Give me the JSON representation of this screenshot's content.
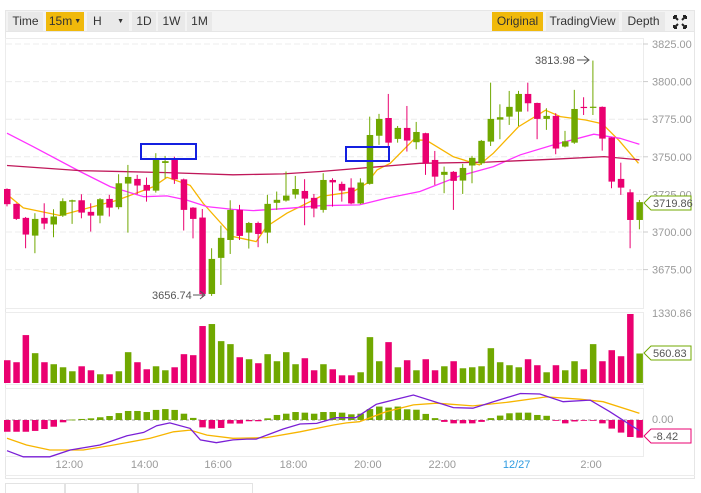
{
  "toolbar": {
    "left": [
      {
        "label": "Time",
        "active": false
      },
      {
        "label": "15m",
        "active": true,
        "dropdown": true
      },
      {
        "label": "H",
        "active": false,
        "dropdown": true
      },
      {
        "label": "1D",
        "active": false
      },
      {
        "label": "1W",
        "active": false
      },
      {
        "label": "1M",
        "active": false
      }
    ],
    "right": [
      {
        "label": "Original",
        "active": true
      },
      {
        "label": "TradingView",
        "active": false
      },
      {
        "label": "Depth",
        "active": false
      }
    ],
    "fullscreen_icon": "expand-arrows-icon"
  },
  "colors": {
    "up": "#70a800",
    "down": "#ea0070",
    "ma7": "#f7b500",
    "ma25": "#ff33ff",
    "ma99": "#c0185a",
    "dif": "#7a1fd6",
    "dea": "#f7b500",
    "accent": "#f0b90b",
    "date_label": "#2e9be0",
    "annotation_box": "#1420e0"
  },
  "chart_data": {
    "type": "candlestick",
    "interval": "15m",
    "price_axis": {
      "ticks": [
        "3825.00",
        "3800.00",
        "3775.00",
        "3750.00",
        "3725.00",
        "3700.00",
        "3675.00"
      ],
      "range": [
        3640,
        3825
      ]
    },
    "time_axis": [
      {
        "label": "12:00",
        "index": 6.7
      },
      {
        "label": "14:00",
        "index": 14.8
      },
      {
        "label": "16:00",
        "index": 22.7
      },
      {
        "label": "18:00",
        "index": 30.8
      },
      {
        "label": "20:00",
        "index": 38.8
      },
      {
        "label": "22:00",
        "index": 46.8
      },
      {
        "label": "12/27",
        "index": 54.8,
        "is_date": true
      },
      {
        "label": "2:00",
        "index": 62.8
      }
    ],
    "current_price": "3719.86",
    "high_marker": {
      "label": "3813.98",
      "index": 63,
      "value": 3813.98
    },
    "low_marker": {
      "label": "3656.74",
      "index": 21,
      "value": 3656.74
    },
    "ohlc": [
      [
        3728.6,
        3729,
        3717,
        3718.5
      ],
      [
        3718.7,
        3719,
        3708,
        3708.7
      ],
      [
        3709.4,
        3710,
        3689.2,
        3698.3
      ],
      [
        3697.6,
        3712.5,
        3685.9,
        3708.7
      ],
      [
        3709.4,
        3719.1,
        3701.8,
        3705.6
      ],
      [
        3705,
        3715.1,
        3696.5,
        3710.3
      ],
      [
        3710.9,
        3722.4,
        3710,
        3720.5
      ],
      [
        3720.2,
        3721.5,
        3705.4,
        3721.1
      ],
      [
        3721.1,
        3725.1,
        3709.1,
        3712.9
      ],
      [
        3713.4,
        3719.1,
        3700.3,
        3710.9
      ],
      [
        3710.9,
        3722.5,
        3705.8,
        3721.8
      ],
      [
        3722,
        3724.7,
        3710.3,
        3716.2
      ],
      [
        3716.5,
        3738.4,
        3715.1,
        3732.4
      ],
      [
        3732.2,
        3744.6,
        3699.6,
        3736.6
      ],
      [
        3735.3,
        3738,
        3725.1,
        3730.9
      ],
      [
        3731.3,
        3736.2,
        3720.2,
        3727.5
      ],
      [
        3727.5,
        3752.4,
        3726.2,
        3747.9
      ],
      [
        3745.9,
        3750.6,
        3735.7,
        3747.1
      ],
      [
        3749,
        3750.1,
        3732,
        3735
      ],
      [
        3735,
        3735.5,
        3701,
        3714.7
      ],
      [
        3716.2,
        3716.5,
        3695.8,
        3708.7
      ],
      [
        3709.6,
        3715.3,
        3656.74,
        3658.8
      ],
      [
        3658.8,
        3689.2,
        3657.5,
        3682.1
      ],
      [
        3682.8,
        3704.3,
        3664.8,
        3696.1
      ],
      [
        3694.7,
        3721.1,
        3685.4,
        3714.7
      ],
      [
        3714.7,
        3718,
        3694.7,
        3697.4
      ],
      [
        3699.6,
        3706.7,
        3689,
        3706
      ],
      [
        3706,
        3706.9,
        3689.9,
        3698.7
      ],
      [
        3699.6,
        3724.7,
        3692.5,
        3718.7
      ],
      [
        3719.4,
        3726.9,
        3714.7,
        3721.4
      ],
      [
        3720.9,
        3740.2,
        3720.2,
        3724.2
      ],
      [
        3724.9,
        3737.3,
        3722.2,
        3728.6
      ],
      [
        3727.3,
        3735.1,
        3704.5,
        3722.2
      ],
      [
        3722.7,
        3725.3,
        3709.8,
        3715.6
      ],
      [
        3714.7,
        3739.1,
        3712.9,
        3734.6
      ],
      [
        3734.6,
        3735.7,
        3716.9,
        3733
      ],
      [
        3732,
        3733.5,
        3720.2,
        3727.5
      ],
      [
        3729.5,
        3735.7,
        3718.5,
        3719
      ],
      [
        3719,
        3735.7,
        3718.5,
        3732.9
      ],
      [
        3732,
        3776.7,
        3731.5,
        3764.5
      ],
      [
        3764,
        3778.5,
        3757.9,
        3775.2
      ],
      [
        3775.8,
        3791.8,
        3757.2,
        3759.4
      ],
      [
        3761.9,
        3770.5,
        3759.4,
        3769.2
      ],
      [
        3769.2,
        3783.8,
        3753.5,
        3760.8
      ],
      [
        3759.7,
        3773.2,
        3755,
        3766.5
      ],
      [
        3765.7,
        3766,
        3738,
        3745.7
      ],
      [
        3747.9,
        3753.9,
        3731.3,
        3736.8
      ],
      [
        3738,
        3743.5,
        3725.8,
        3740
      ],
      [
        3740,
        3740.5,
        3714.7,
        3734
      ],
      [
        3734.2,
        3745.3,
        3725.3,
        3742.6
      ],
      [
        3744.2,
        3750.6,
        3732.4,
        3749.3
      ],
      [
        3745.7,
        3761.2,
        3744.6,
        3760.6
      ],
      [
        3760.1,
        3799.3,
        3757.2,
        3775.2
      ],
      [
        3774.7,
        3784.9,
        3761.7,
        3776.3
      ],
      [
        3776.7,
        3793.8,
        3771.2,
        3783.2
      ],
      [
        3780,
        3793.8,
        3770.5,
        3791.8
      ],
      [
        3791.8,
        3799.3,
        3780.1,
        3785.6
      ],
      [
        3785.8,
        3786,
        3761.7,
        3775.2
      ],
      [
        3775.2,
        3782.3,
        3767.9,
        3777.2
      ],
      [
        3777.2,
        3779,
        3751.7,
        3755.5
      ],
      [
        3756.8,
        3767.2,
        3756.3,
        3760.3
      ],
      [
        3759.4,
        3794.5,
        3758.6,
        3781.8
      ],
      [
        3783.2,
        3789.6,
        3777.8,
        3782.8
      ],
      [
        3782.8,
        3813.98,
        3777.8,
        3783.3
      ],
      [
        3783.2,
        3783.5,
        3754.1,
        3762.1
      ],
      [
        3762.8,
        3763,
        3729.1,
        3733.5
      ],
      [
        3735.3,
        3746.1,
        3724.7,
        3729.5
      ],
      [
        3726.4,
        3728.4,
        3689.2,
        3708
      ],
      [
        3708,
        3721.3,
        3701.8,
        3719.86
      ]
    ],
    "ma_lines": [
      {
        "name": "MA7",
        "points": [
          [
            0,
            3725
          ],
          [
            1.75,
            3716
          ],
          [
            5.7,
            3711
          ],
          [
            11.8,
            3721
          ],
          [
            15.7,
            3730
          ],
          [
            17.2,
            3736.4
          ],
          [
            19.7,
            3731
          ],
          [
            21.1,
            3719
          ],
          [
            24.3,
            3697
          ],
          [
            26.8,
            3693.6
          ],
          [
            27.9,
            3703.6
          ],
          [
            30.1,
            3712.5
          ],
          [
            33.7,
            3723.6
          ],
          [
            37.2,
            3726.8
          ],
          [
            38.7,
            3732.4
          ],
          [
            39.8,
            3741.3
          ],
          [
            41.2,
            3745.7
          ],
          [
            43.7,
            3761.3
          ],
          [
            45.1,
            3761
          ],
          [
            48,
            3750
          ],
          [
            50.8,
            3744.6
          ],
          [
            52.3,
            3752.4
          ],
          [
            55,
            3770
          ],
          [
            57.9,
            3781
          ],
          [
            59.5,
            3776.7
          ],
          [
            62.2,
            3774.5
          ],
          [
            64,
            3772
          ],
          [
            65.8,
            3761
          ],
          [
            67.9,
            3745.7
          ]
        ]
      },
      {
        "name": "MA25",
        "points": [
          [
            0,
            3765.7
          ],
          [
            2.8,
            3756.8
          ],
          [
            7.85,
            3740.2
          ],
          [
            11.1,
            3730.2
          ],
          [
            14.7,
            3723.5
          ],
          [
            17.2,
            3724
          ],
          [
            19.3,
            3721.3
          ],
          [
            21.5,
            3716.9
          ],
          [
            24.3,
            3715
          ],
          [
            26.5,
            3714.2
          ],
          [
            30.4,
            3715.8
          ],
          [
            33.7,
            3717.5
          ],
          [
            37.9,
            3718
          ],
          [
            40.8,
            3722.5
          ],
          [
            44.4,
            3726.9
          ],
          [
            48.7,
            3737.3
          ],
          [
            52.3,
            3743.5
          ],
          [
            55.2,
            3751.3
          ],
          [
            58.8,
            3758
          ],
          [
            63.1,
            3765
          ],
          [
            65.9,
            3762.3
          ],
          [
            68,
            3758.3
          ]
        ]
      },
      {
        "name": "MA99",
        "points": [
          [
            0,
            3744.2
          ],
          [
            7.85,
            3740.8
          ],
          [
            17.2,
            3739.5
          ],
          [
            24.3,
            3738
          ],
          [
            29.7,
            3738.6
          ],
          [
            33.7,
            3740.2
          ],
          [
            44.4,
            3745.7
          ],
          [
            51.6,
            3746.5
          ],
          [
            58.8,
            3748.4
          ],
          [
            64.2,
            3750.1
          ],
          [
            68,
            3748
          ]
        ]
      }
    ],
    "volume": {
      "max_label": "1330.86",
      "max": 1330.86,
      "current_label": "560.83",
      "values": [
        433,
        395,
        911,
        567,
        395,
        357,
        299,
        223,
        318,
        242,
        166,
        166,
        223,
        586,
        395,
        261,
        318,
        242,
        299,
        548,
        529,
        1083,
        1121,
        796,
        739,
        490,
        452,
        376,
        548,
        414,
        586,
        357,
        471,
        242,
        357,
        261,
        146,
        146,
        204,
        872,
        414,
        777,
        299,
        433,
        242,
        452,
        242,
        318,
        414,
        280,
        299,
        318,
        662,
        395,
        338,
        299,
        452,
        338,
        204,
        338,
        242,
        414,
        261,
        739,
        414,
        624,
        509,
        1312,
        560.83
      ]
    },
    "macd": {
      "zero_label": "0.00",
      "current_label": "-8.42",
      "histogram": [
        -5.6,
        -5.6,
        -5.6,
        -5.2,
        -4.3,
        -3.2,
        -1.1,
        0.2,
        0.5,
        0.8,
        1.3,
        1.9,
        3.3,
        4.3,
        4.3,
        3.8,
        4.8,
        5.2,
        4.8,
        3.0,
        1.0,
        -3.5,
        -4.1,
        -3.8,
        -1.7,
        -1.7,
        -0.6,
        -0.6,
        0.8,
        2.4,
        3.0,
        3.8,
        3.5,
        3.0,
        3.8,
        3.8,
        3.5,
        2.7,
        3.0,
        5.2,
        6.4,
        5.9,
        6.4,
        5.1,
        4.9,
        2.9,
        0.9,
        -0.9,
        -1.6,
        -1.6,
        -1.6,
        -0.9,
        0.9,
        2.1,
        3.2,
        3.5,
        3.5,
        2.4,
        2.0,
        -0.3,
        -1.6,
        -0.7,
        -0.3,
        -0.3,
        -1.6,
        -4.1,
        -6.0,
        -8.1,
        -8.42
      ],
      "dif": [
        [
          0,
          -14.6
        ],
        [
          1.75,
          -17.5
        ],
        [
          4.6,
          -17.5
        ],
        [
          6.8,
          -14.3
        ],
        [
          10,
          -11.9
        ],
        [
          12.9,
          -7.5
        ],
        [
          14.7,
          -5.9
        ],
        [
          16.1,
          -2.7
        ],
        [
          17.5,
          -1.4
        ],
        [
          19.7,
          -4.0
        ],
        [
          20.8,
          -9.5
        ],
        [
          22.5,
          -10.8
        ],
        [
          24.3,
          -9.5
        ],
        [
          25.8,
          -9.1
        ],
        [
          26.8,
          -9.1
        ],
        [
          29.7,
          -4.3
        ],
        [
          31.5,
          -1.9
        ],
        [
          33.3,
          -1.6
        ],
        [
          35.4,
          1.1
        ],
        [
          37.5,
          1.1
        ],
        [
          39.7,
          7.5
        ],
        [
          43.7,
          11.9
        ],
        [
          48,
          5.9
        ],
        [
          50.1,
          5.6
        ],
        [
          52.3,
          8.7
        ],
        [
          55.2,
          12.6
        ],
        [
          57.3,
          12.4
        ],
        [
          59.8,
          8.7
        ],
        [
          62.7,
          9.5
        ],
        [
          64.8,
          4.0
        ],
        [
          68,
          -5.1
        ]
      ],
      "dea": [
        [
          0,
          -8.7
        ],
        [
          2.1,
          -11.9
        ],
        [
          4.6,
          -14.3
        ],
        [
          8.2,
          -14.3
        ],
        [
          11.1,
          -12.2
        ],
        [
          15.4,
          -8.7
        ],
        [
          17.9,
          -5.6
        ],
        [
          19.7,
          -4.8
        ],
        [
          21.5,
          -7.2
        ],
        [
          24.3,
          -8.7
        ],
        [
          27.9,
          -8.4
        ],
        [
          31.5,
          -5.6
        ],
        [
          35.1,
          -2.4
        ],
        [
          36.5,
          -1.4
        ],
        [
          37.9,
          -0.8
        ],
        [
          40.8,
          4.0
        ],
        [
          43.7,
          7.2
        ],
        [
          46.2,
          8.0
        ],
        [
          50.1,
          6.7
        ],
        [
          53.7,
          8.4
        ],
        [
          58,
          11.0
        ],
        [
          61.6,
          9.9
        ],
        [
          64.1,
          8.7
        ],
        [
          68,
          3.2
        ]
      ]
    }
  }
}
